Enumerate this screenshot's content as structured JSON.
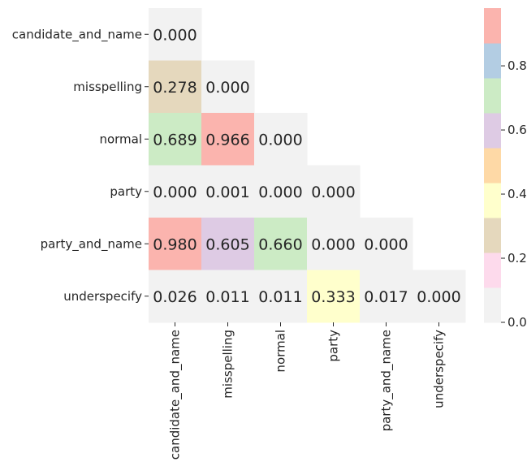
{
  "chart_data": {
    "type": "heatmap",
    "title": "",
    "xlabel": "",
    "ylabel": "",
    "x_categories": [
      "candidate_and_name",
      "misspelling",
      "normal",
      "party",
      "party_and_name",
      "underspecify"
    ],
    "y_categories": [
      "candidate_and_name",
      "misspelling",
      "normal",
      "party",
      "party_and_name",
      "underspecify"
    ],
    "mask": "upper triangle (cells right of the diagonal are empty)",
    "values": [
      [
        0.0,
        null,
        null,
        null,
        null,
        null
      ],
      [
        0.278,
        0.0,
        null,
        null,
        null,
        null
      ],
      [
        0.689,
        0.966,
        0.0,
        null,
        null,
        null
      ],
      [
        0.0,
        0.001,
        0.0,
        0.0,
        null,
        null
      ],
      [
        0.98,
        0.605,
        0.66,
        0.0,
        0.0,
        null
      ],
      [
        0.026,
        0.011,
        0.011,
        0.333,
        0.017,
        0.0
      ]
    ],
    "value_labels": [
      [
        "0.000",
        null,
        null,
        null,
        null,
        null
      ],
      [
        "0.278",
        "0.000",
        null,
        null,
        null,
        null
      ],
      [
        "0.689",
        "0.966",
        "0.000",
        null,
        null,
        null
      ],
      [
        "0.000",
        "0.001",
        "0.000",
        "0.000",
        null,
        null
      ],
      [
        "0.980",
        "0.605",
        "0.660",
        "0.000",
        "0.000",
        null
      ],
      [
        "0.026",
        "0.011",
        "0.011",
        "0.333",
        "0.017",
        "0.000"
      ]
    ],
    "colorbar": {
      "range": [
        0,
        0.98
      ],
      "ticks": [
        0.0,
        0.2,
        0.4,
        0.6,
        0.8
      ],
      "tick_labels": [
        "0.0",
        "0.2",
        "0.4",
        "0.6",
        "0.8"
      ],
      "colormap": "Pastel1 (reversed)",
      "colors_low_to_high": [
        "#f2f2f2",
        "#fddaec",
        "#e5d8bd",
        "#ffffcc",
        "#fed9a6",
        "#decbe4",
        "#ccebc5",
        "#b3cde3",
        "#fbb4ae"
      ]
    },
    "grid": false,
    "legend": "colorbar at right"
  }
}
